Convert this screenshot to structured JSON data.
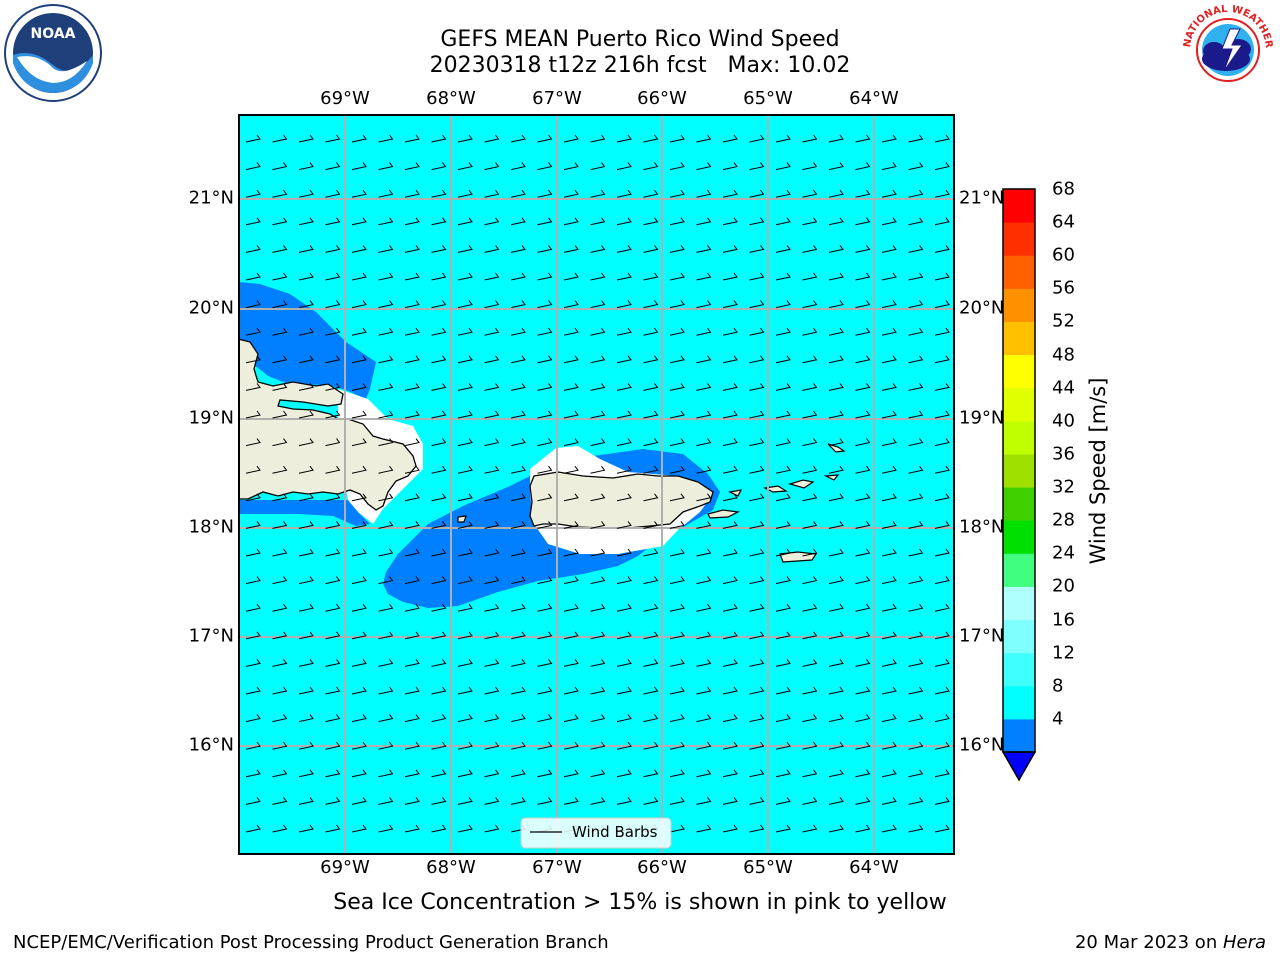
{
  "title": {
    "line1": "GEFS MEAN Puerto Rico Wind Speed",
    "line2": "20230318 t12z 216h fcst   Max: 10.02"
  },
  "logos": {
    "left": {
      "text": "NOAA",
      "icon": "noaa-logo"
    },
    "right": {
      "text": "NATIONAL WEATHER SERVICE",
      "icon": "nws-logo"
    }
  },
  "map": {
    "lon_labels": [
      "69°W",
      "68°W",
      "67°W",
      "66°W",
      "65°W",
      "64°W"
    ],
    "lat_labels": [
      "21°N",
      "20°N",
      "19°N",
      "18°N",
      "17°N",
      "16°N"
    ],
    "lon_extent": [
      -70.0,
      -63.25
    ],
    "lat_extent": [
      15.0,
      21.75
    ],
    "background_color": "#00ffff",
    "low_wind_color": "#0080ff",
    "land_color": "#eeeedd",
    "wind_barb_legend": "Wind Barbs",
    "caption": "Sea Ice Concentration > 15% is shown in pink to yellow"
  },
  "colorbar": {
    "title": "Wind Speed [m/s]",
    "levels": [
      4,
      8,
      12,
      16,
      20,
      24,
      28,
      32,
      36,
      40,
      44,
      48,
      52,
      56,
      60,
      64,
      68
    ],
    "tick_labels": [
      "68",
      "64",
      "60",
      "56",
      "52",
      "48",
      "44",
      "40",
      "36",
      "32",
      "28",
      "24",
      "20",
      "16",
      "12",
      "8",
      "4"
    ],
    "colors": [
      "#0080ff",
      "#00ffff",
      "#40ffff",
      "#80ffff",
      "#b0ffff",
      "#40ff80",
      "#00e000",
      "#40d000",
      "#a0e000",
      "#c0ff00",
      "#e0ff00",
      "#ffff00",
      "#ffc000",
      "#ff9000",
      "#ff6000",
      "#ff3000",
      "#ff0000"
    ],
    "under_color": "#0000ff"
  },
  "footer": {
    "left": "NCEP/EMC/Verification Post Processing Product Generation Branch",
    "right_prefix": "20 Mar 2023 on ",
    "right_host": "Hera"
  }
}
